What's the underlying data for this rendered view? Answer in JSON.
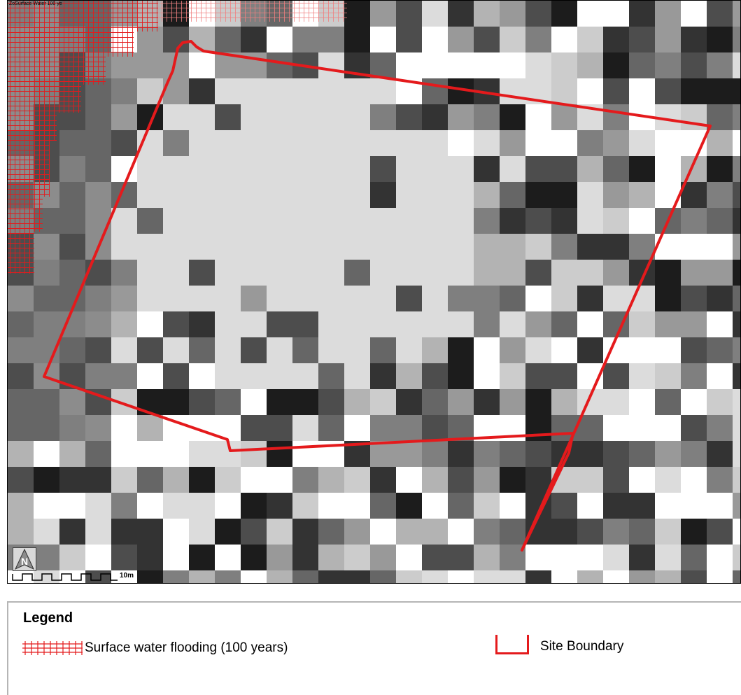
{
  "map": {
    "layer_label": "ZoSurface Water 100 ye",
    "scale_label": "10m",
    "north_label": "N",
    "colors": {
      "site_boundary": "#e41a1c",
      "flood_hatch": "#e41a1c"
    }
  },
  "legend": {
    "title": "Legend",
    "items": [
      {
        "label": "Surface water flooding (100 years)",
        "symbol": "red-crosshatch"
      },
      {
        "label": "Site Boundary",
        "symbol": "red-outline"
      }
    ]
  }
}
